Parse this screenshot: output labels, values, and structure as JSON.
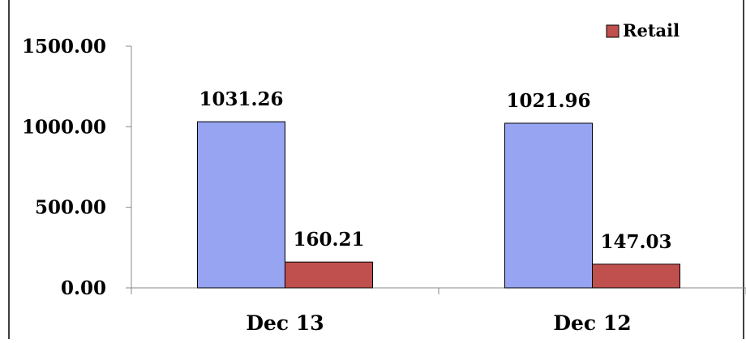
{
  "chart_data": {
    "type": "bar",
    "categories": [
      "Dec 13",
      "Dec 12"
    ],
    "series": [
      {
        "name": "",
        "values": [
          1031.26,
          1021.96
        ],
        "color": "#96A4F2"
      },
      {
        "name": "Retail",
        "values": [
          160.21,
          147.03
        ],
        "color": "#C0504D"
      }
    ],
    "value_labels": [
      [
        "1031.26",
        "1021.96"
      ],
      [
        "160.21",
        "147.03"
      ]
    ],
    "y_ticks": [
      "0.00",
      "500.00",
      "1000.00",
      "1500.00"
    ],
    "y_tick_values": [
      0,
      500,
      1000,
      1500
    ],
    "ylim": [
      0,
      1500
    ],
    "legend": {
      "label": "Retail",
      "position": "top-right"
    },
    "grid": false
  }
}
